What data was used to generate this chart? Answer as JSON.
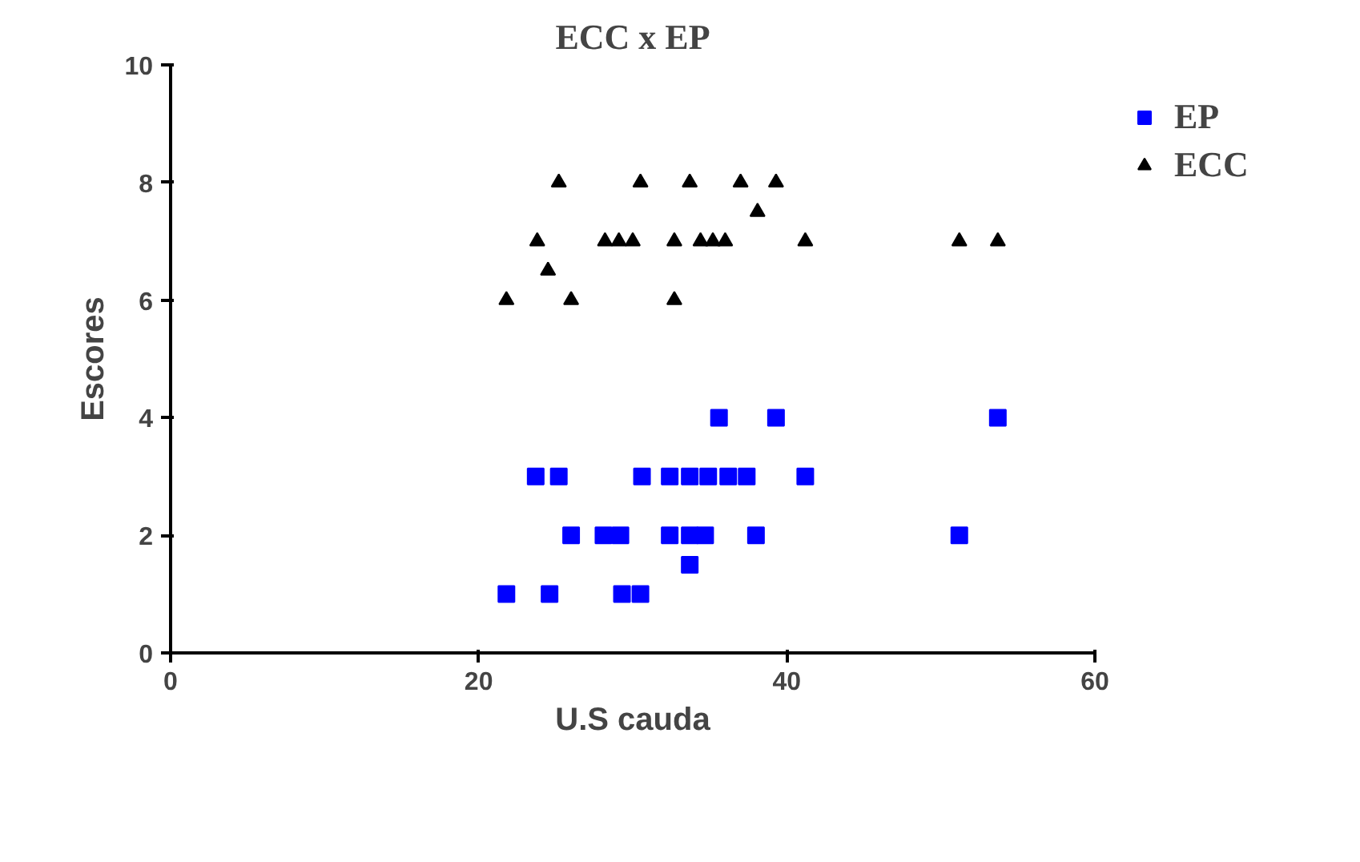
{
  "chart_data": {
    "type": "scatter",
    "title": "ECC x EP",
    "xlabel": "U.S cauda",
    "ylabel": "Escores",
    "xlim": [
      0,
      60
    ],
    "ylim": [
      0,
      10
    ],
    "xticks": [
      0,
      20,
      40,
      60
    ],
    "yticks": [
      0,
      2,
      4,
      6,
      8,
      10
    ],
    "grid": false,
    "legend": "top right",
    "series": [
      {
        "name": "EP",
        "color": "#0000ff",
        "marker": "square",
        "x": [
          21.8,
          24.6,
          29.3,
          30.5,
          23.7,
          25.2,
          30.6,
          32.4,
          33.7,
          34.9,
          36.2,
          37.4,
          41.2,
          35.6,
          39.3,
          53.7,
          26.0,
          28.1,
          29.2,
          32.4,
          33.7,
          34.7,
          38.0,
          51.2,
          33.7
        ],
        "values": [
          1,
          1,
          1,
          1,
          3,
          3,
          3,
          3,
          3,
          3,
          3,
          3,
          3,
          4,
          4,
          4,
          2,
          2,
          2,
          2,
          2,
          2,
          2,
          2,
          1.5
        ]
      },
      {
        "name": "ECC",
        "color": "#000000",
        "marker": "triangle",
        "x": [
          21.8,
          23.8,
          24.5,
          25.2,
          26.0,
          28.2,
          29.1,
          30.0,
          30.5,
          32.7,
          32.7,
          33.7,
          34.4,
          35.2,
          36.0,
          37.0,
          38.1,
          39.3,
          41.2,
          51.2,
          53.7
        ],
        "values": [
          6,
          7,
          6.5,
          8,
          6,
          7,
          7,
          7,
          8,
          6,
          7,
          8,
          7,
          7,
          7,
          8,
          7.5,
          8,
          7,
          7,
          7
        ]
      }
    ]
  }
}
